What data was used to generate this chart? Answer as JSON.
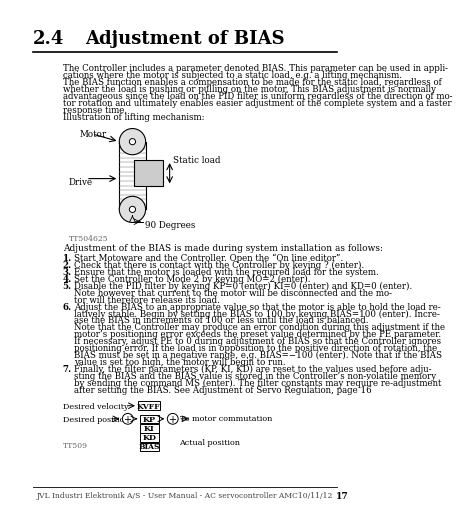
{
  "title_number": "2.4",
  "title_text": "Adjustment of BIAS",
  "body_text": "The Controller includes a parameter denoted BIAS. This parameter can be used in appli-\ncations where the motor is subjected to a static load, e.g. a lifting mechanism.\nThe BIAS function enables a compensation to be made for the static load, regardless of\nwhether the load is pushing or pulling on the motor. This BIAS adjustment is normally\nadvantageous since the load on the PID filter is uniform regardless of the direction of mo-\ntor rotation and ultimately enables easier adjustment of the complete system and a faster\nresponse time.\nIllustration of lifting mechanism:",
  "diagram1_label": "TT504625",
  "adjustment_text": "Adjustment of the BIAS is made during system installation as follows:",
  "steps": [
    "Start Motoware and the Controller. Open the “On line editor”.",
    "Check that there is contact with the Controller by keying ? (enter).",
    "Ensure that the motor is loaded with the required load for the system.",
    "Set the Controller to Mode 2 by keying MO=2 (enter).",
    "Disable the PID filter by keying KP=0 (enter) KI=0 (enter) and KD=0 (enter).\nNote however that current to the motor will be disconnected and the mo-\ntor will therefore release its load.",
    "Adjust the BIAS to an appropriate value so that the motor is able to hold the load re-\nlatively stable. Begin by setting the BIAS to 100 by keying BIAS=100 (enter). Incre-\nase the BIAS in increments of 100 or less until the load is balanced.\nNote that the Controller may produce an error condition during this adjustment if the\nmotor’s positioning error exceeds the preset value determined by the PE parameter.\nIf necessary, adjust PE to 0 during adjustment of BIAS so that the Controller ignores\npositioning error. If the load is in opposition to the positive direction of rotation, the\nBIAS must be set in a negative range, e.g. BIAS=−100 (enter). Note that if the BIAS\nvalue is set too high, the motor will begin to run.",
    "Finally, the filter parameters (KP, KI, KD) are reset to the values used before adju-\nsting the BIAS and the BIAS value is stored in the Controller’s non-volatile memory\nby sending the command MS (enter). The filter constants may require re-adjustment\nafter setting the BIAS. See Adjustment of Servo Regulation, page 16"
  ],
  "diagram2_label": "TT509",
  "footer_text": "JVL Industri Elektronik A/S - User Manual - AC servocontroller AMC10/11/12",
  "page_number": "17",
  "bg_color": "#ffffff",
  "text_color": "#000000",
  "footer_color": "#444444"
}
